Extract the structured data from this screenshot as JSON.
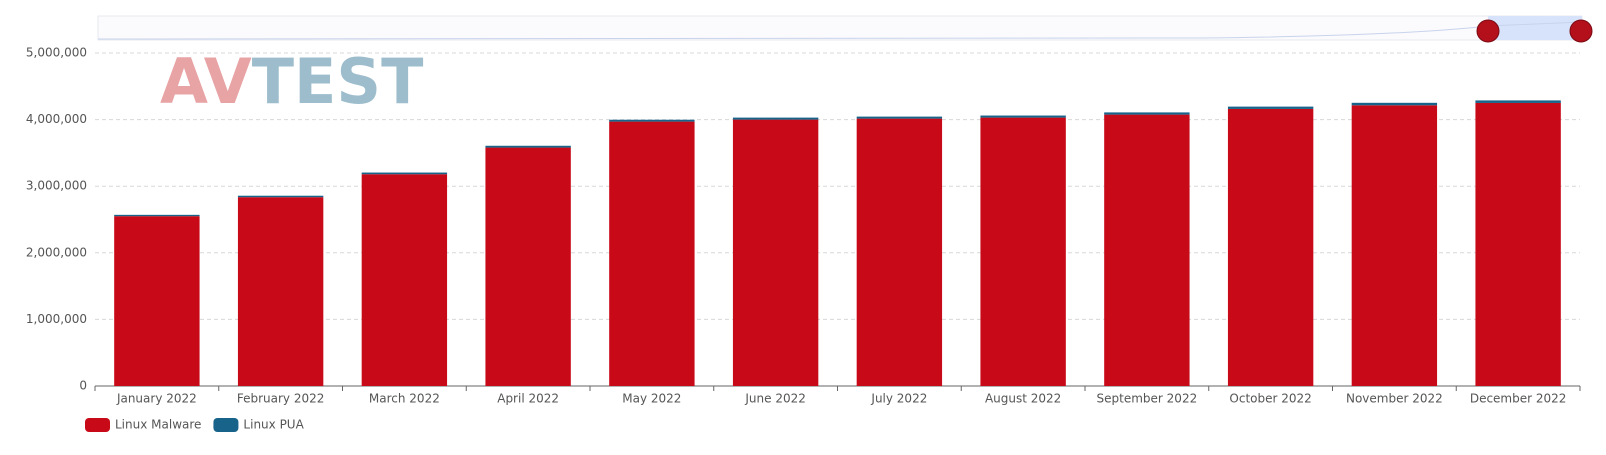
{
  "chart_data": {
    "type": "stacked-bar",
    "watermark": [
      "AV",
      "TEST"
    ],
    "categories": [
      "January 2022",
      "February 2022",
      "March 2022",
      "April 2022",
      "May 2022",
      "June 2022",
      "July 2022",
      "August 2022",
      "September 2022",
      "October 2022",
      "November 2022",
      "December 2022"
    ],
    "series": [
      {
        "name": "Linux Malware",
        "color": "#c80a18",
        "values": [
          2550000,
          2835000,
          3180000,
          3580000,
          3970000,
          4000000,
          4015000,
          4030000,
          4075000,
          4160000,
          4215000,
          4250000
        ]
      },
      {
        "name": "Linux PUA",
        "color": "#17638a",
        "values": [
          20000,
          22000,
          25000,
          27000,
          28000,
          30000,
          30000,
          31000,
          33000,
          35000,
          37000,
          38000
        ]
      }
    ],
    "ylim": [
      0,
      5000000
    ],
    "yticks": [
      0,
      {
        "value": 1000000,
        "label": "1,000,000"
      },
      {
        "value": 2000000,
        "label": "2,000,000"
      },
      {
        "value": 3000000,
        "label": "3,000,000"
      },
      {
        "value": 4000000,
        "label": "4,000,000"
      },
      {
        "value": 5000000,
        "label": "5,000,000"
      }
    ],
    "grid": true,
    "legend": "bottom-left"
  }
}
